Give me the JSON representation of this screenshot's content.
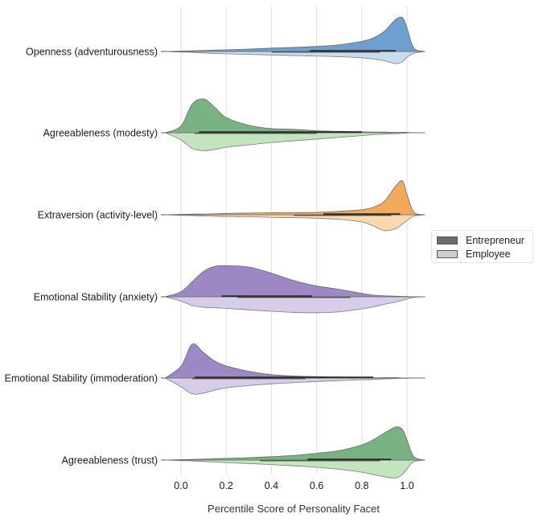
{
  "chart_data": {
    "type": "violin",
    "title": "",
    "xlabel": "Percentile Score of Personality Facet",
    "ylabel": "",
    "xlim": [
      -0.07,
      1.08
    ],
    "xticks": [
      0.0,
      0.2,
      0.4,
      0.6,
      0.8,
      1.0
    ],
    "xtick_labels": [
      "0.0",
      "0.2",
      "0.4",
      "0.6",
      "0.8",
      "1.0"
    ],
    "grid": "vertical",
    "legend": {
      "placement": "right",
      "entries": [
        {
          "label": "Entrepreneur",
          "color": "#6e6e6e"
        },
        {
          "label": "Employee",
          "color": "#cfcfcf"
        }
      ]
    },
    "categories": [
      "Openness (adventurousness)",
      "Agreeableness (modesty)",
      "Extraversion (activity-level)",
      "Emotional Stability (anxiety)",
      "Emotional Stability (immoderation)",
      "Agreeableness (trust)"
    ],
    "colors": [
      {
        "dark": "#6f9fcf",
        "light": "#c9dcee"
      },
      {
        "dark": "#79b384",
        "light": "#c3e4bf"
      },
      {
        "dark": "#f3a95a",
        "light": "#fad9b0"
      },
      {
        "dark": "#9d88c6",
        "light": "#d8cde8"
      },
      {
        "dark": "#9d88c6",
        "light": "#d8cde8"
      },
      {
        "dark": "#79b384",
        "light": "#c3e4bf"
      }
    ],
    "x_grid": [
      -0.07,
      0.0,
      0.05,
      0.1,
      0.15,
      0.2,
      0.3,
      0.4,
      0.5,
      0.6,
      0.7,
      0.8,
      0.85,
      0.9,
      0.95,
      0.98,
      1.0,
      1.03,
      1.08
    ],
    "series": [
      {
        "category": "Openness (adventurousness)",
        "entrepreneur_density": [
          0,
          0.01,
          0.02,
          0.03,
          0.04,
          0.05,
          0.07,
          0.1,
          0.12,
          0.15,
          0.2,
          0.3,
          0.4,
          0.6,
          0.95,
          1.0,
          0.7,
          0.1,
          0
        ],
        "employee_density": [
          0,
          0.02,
          0.03,
          0.05,
          0.07,
          0.08,
          0.1,
          0.12,
          0.14,
          0.16,
          0.18,
          0.22,
          0.26,
          0.32,
          0.42,
          0.35,
          0.2,
          0.06,
          0
        ],
        "entrepreneur_box": [
          0.57,
          0.95
        ],
        "employee_box": [
          0.4,
          0.88
        ]
      },
      {
        "category": "Agreeableness (modesty)",
        "entrepreneur_density": [
          0,
          0.2,
          0.85,
          1.0,
          0.75,
          0.45,
          0.22,
          0.12,
          0.1,
          0.06,
          0.04,
          0.03,
          0.02,
          0.02,
          0.01,
          0.01,
          0.01,
          0,
          0
        ],
        "employee_density": [
          0,
          0.25,
          0.55,
          0.62,
          0.58,
          0.5,
          0.42,
          0.34,
          0.28,
          0.22,
          0.16,
          0.1,
          0.07,
          0.05,
          0.03,
          0.02,
          0.01,
          0,
          0
        ],
        "entrepreneur_box": [
          0.08,
          0.8
        ],
        "employee_box": [
          0.06,
          0.6
        ]
      },
      {
        "category": "Extraversion (activity-level)",
        "entrepreneur_density": [
          0,
          0.01,
          0.02,
          0.02,
          0.03,
          0.04,
          0.05,
          0.06,
          0.06,
          0.07,
          0.1,
          0.15,
          0.22,
          0.4,
          0.85,
          1.0,
          0.6,
          0.08,
          0
        ],
        "employee_density": [
          0,
          0.02,
          0.03,
          0.04,
          0.05,
          0.06,
          0.07,
          0.09,
          0.1,
          0.12,
          0.16,
          0.25,
          0.38,
          0.55,
          0.48,
          0.32,
          0.2,
          0.05,
          0
        ],
        "entrepreneur_box": [
          0.63,
          0.97
        ],
        "employee_box": [
          0.5,
          0.93
        ]
      },
      {
        "category": "Emotional Stability (anxiety)",
        "entrepreneur_density": [
          0,
          0.15,
          0.45,
          0.75,
          0.9,
          0.92,
          0.88,
          0.7,
          0.48,
          0.32,
          0.22,
          0.1,
          0.05,
          0.03,
          0.02,
          0.01,
          0.01,
          0,
          0
        ],
        "employee_density": [
          0,
          0.15,
          0.3,
          0.36,
          0.38,
          0.4,
          0.45,
          0.5,
          0.54,
          0.55,
          0.52,
          0.42,
          0.35,
          0.26,
          0.18,
          0.12,
          0.08,
          0.02,
          0
        ],
        "entrepreneur_box": [
          0.18,
          0.58
        ],
        "employee_box": [
          0.25,
          0.75
        ]
      },
      {
        "category": "Emotional Stability (immoderation)",
        "entrepreneur_density": [
          0,
          0.35,
          1.0,
          0.75,
          0.5,
          0.36,
          0.2,
          0.1,
          0.06,
          0.04,
          0.03,
          0.02,
          0.01,
          0.01,
          0.01,
          0,
          0,
          0,
          0
        ],
        "employee_density": [
          0,
          0.3,
          0.55,
          0.52,
          0.42,
          0.34,
          0.26,
          0.2,
          0.16,
          0.12,
          0.09,
          0.06,
          0.05,
          0.03,
          0.02,
          0.01,
          0.01,
          0,
          0
        ],
        "entrepreneur_box": [
          0.06,
          0.85
        ],
        "employee_box": [
          0.05,
          0.55
        ]
      },
      {
        "category": "Agreeableness (trust)",
        "entrepreneur_density": [
          0,
          0.01,
          0.02,
          0.03,
          0.04,
          0.05,
          0.07,
          0.1,
          0.14,
          0.2,
          0.28,
          0.45,
          0.6,
          0.8,
          0.98,
          0.9,
          0.6,
          0.1,
          0
        ],
        "employee_density": [
          0,
          0.02,
          0.03,
          0.05,
          0.07,
          0.09,
          0.12,
          0.16,
          0.2,
          0.25,
          0.32,
          0.42,
          0.5,
          0.58,
          0.62,
          0.5,
          0.3,
          0.06,
          0
        ],
        "entrepreneur_box": [
          0.56,
          0.93
        ],
        "employee_box": [
          0.35,
          0.88
        ]
      }
    ]
  }
}
